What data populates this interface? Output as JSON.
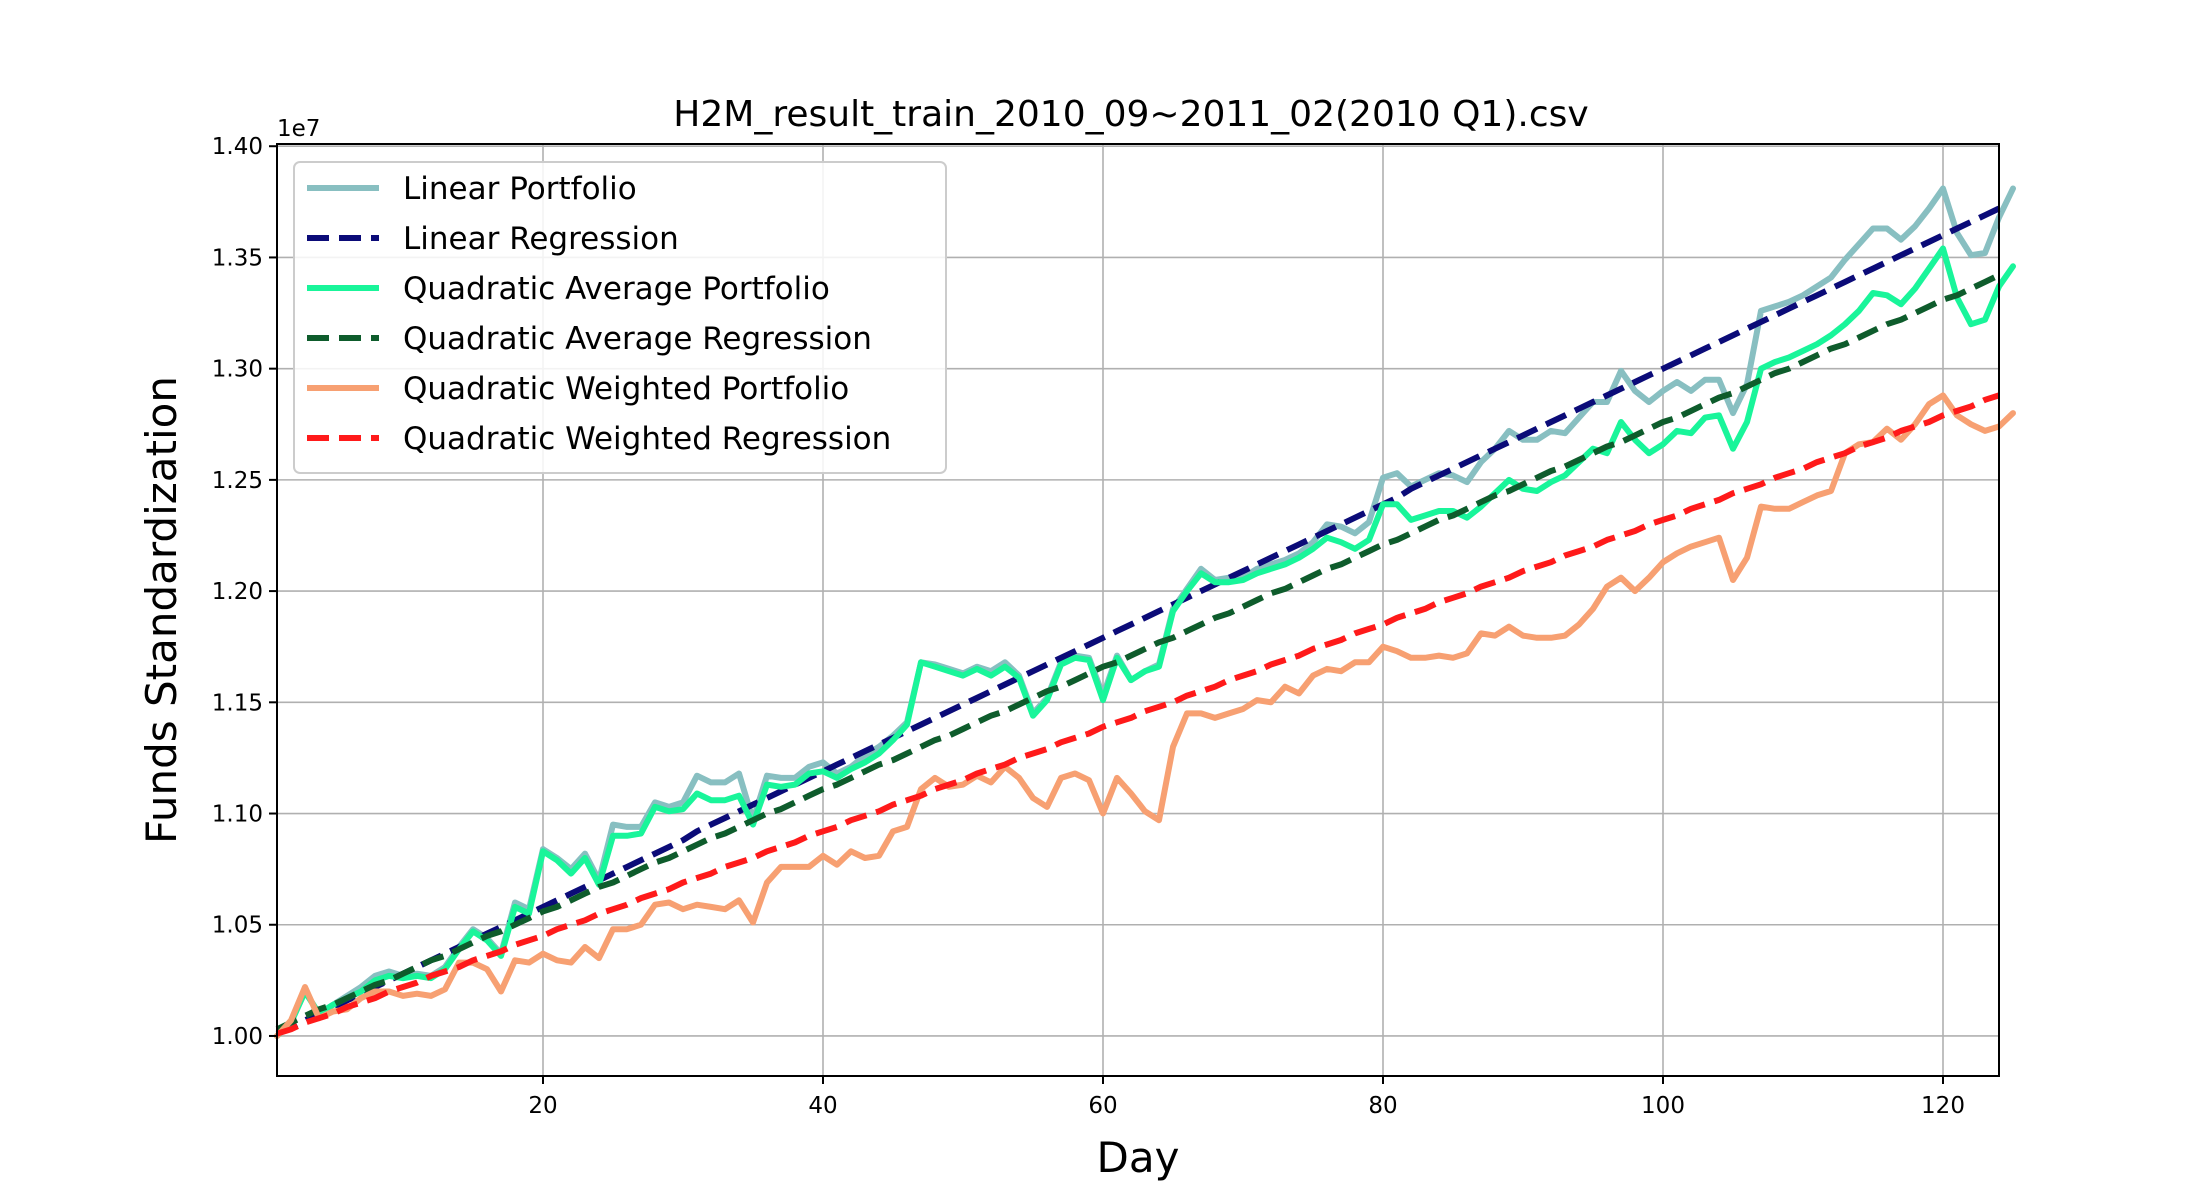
{
  "chart_data": {
    "type": "line",
    "title": "H2M_result_train_2010_09~2011_02(2010 Q1).csv",
    "xlabel": "Day",
    "ylabel": "Funds Standardization",
    "y_offset_label": "1e7",
    "xlim": [
      1,
      124
    ],
    "ylim": [
      0.982,
      1.401
    ],
    "xticks": [
      20,
      40,
      60,
      80,
      100,
      120
    ],
    "yticks": [
      1.0,
      1.05,
      1.1,
      1.15,
      1.2,
      1.25,
      1.3,
      1.35,
      1.4
    ],
    "ytick_labels": [
      "1.00",
      "1.05",
      "1.10",
      "1.15",
      "1.20",
      "1.25",
      "1.30",
      "1.35",
      "1.40"
    ],
    "grid": true,
    "legend_position": "upper-left",
    "series": [
      {
        "name": "Linear Portfolio",
        "color": "#88bfc1",
        "style": "solid",
        "y": [
          1.0,
          1.006,
          1.02,
          1.01,
          1.014,
          1.018,
          1.022,
          1.027,
          1.029,
          1.027,
          1.028,
          1.027,
          1.031,
          1.04,
          1.048,
          1.044,
          1.037,
          1.06,
          1.057,
          1.084,
          1.08,
          1.075,
          1.082,
          1.07,
          1.095,
          1.094,
          1.094,
          1.105,
          1.103,
          1.105,
          1.117,
          1.114,
          1.114,
          1.118,
          1.097,
          1.117,
          1.116,
          1.116,
          1.121,
          1.123,
          1.118,
          1.121,
          1.126,
          1.13,
          1.135,
          1.141,
          1.168,
          1.167,
          1.165,
          1.163,
          1.166,
          1.164,
          1.168,
          1.162,
          1.145,
          1.152,
          1.168,
          1.171,
          1.17,
          1.153,
          1.171,
          1.16,
          1.164,
          1.167,
          1.192,
          1.201,
          1.21,
          1.205,
          1.206,
          1.206,
          1.21,
          1.212,
          1.214,
          1.217,
          1.222,
          1.23,
          1.229,
          1.226,
          1.231,
          1.251,
          1.253,
          1.247,
          1.25,
          1.253,
          1.252,
          1.249,
          1.258,
          1.264,
          1.272,
          1.268,
          1.268,
          1.272,
          1.271,
          1.278,
          1.285,
          1.285,
          1.299,
          1.29,
          1.285,
          1.29,
          1.294,
          1.29,
          1.295,
          1.295,
          1.28,
          1.293,
          1.326,
          1.328,
          1.33,
          1.333,
          1.337,
          1.341,
          1.349,
          1.356,
          1.363,
          1.363,
          1.358,
          1.364,
          1.372,
          1.381,
          1.361,
          1.351,
          1.352,
          1.368,
          1.381
        ]
      },
      {
        "name": "Linear Regression",
        "color": "#0b0b78",
        "style": "dashed",
        "y": [
          1.001,
          1.004,
          1.007,
          1.01,
          1.013,
          1.016,
          1.019,
          1.022,
          1.025,
          1.028,
          1.031,
          1.034,
          1.037,
          1.04,
          1.043,
          1.046,
          1.049,
          1.052,
          1.055,
          1.058,
          1.061,
          1.064,
          1.067,
          1.07,
          1.073,
          1.076,
          1.079,
          1.082,
          1.085,
          1.088,
          1.092,
          1.095,
          1.098,
          1.101,
          1.104,
          1.107,
          1.11,
          1.113,
          1.116,
          1.119,
          1.122,
          1.125,
          1.128,
          1.131,
          1.134,
          1.137,
          1.14,
          1.143,
          1.146,
          1.149,
          1.152,
          1.155,
          1.158,
          1.161,
          1.164,
          1.167,
          1.17,
          1.173,
          1.176,
          1.179,
          1.182,
          1.185,
          1.188,
          1.191,
          1.194,
          1.197,
          1.2,
          1.203,
          1.206,
          1.209,
          1.212,
          1.215,
          1.218,
          1.221,
          1.224,
          1.227,
          1.23,
          1.233,
          1.236,
          1.239,
          1.242,
          1.246,
          1.249,
          1.252,
          1.255,
          1.258,
          1.261,
          1.264,
          1.267,
          1.27,
          1.273,
          1.276,
          1.279,
          1.282,
          1.285,
          1.288,
          1.291,
          1.294,
          1.297,
          1.3,
          1.303,
          1.306,
          1.309,
          1.312,
          1.315,
          1.318,
          1.321,
          1.324,
          1.327,
          1.33,
          1.333,
          1.336,
          1.339,
          1.342,
          1.345,
          1.348,
          1.351,
          1.354,
          1.357,
          1.36,
          1.363,
          1.366,
          1.369,
          1.372
        ]
      },
      {
        "name": "Quadratic Average Portfolio",
        "color": "#19f59a",
        "style": "solid",
        "y": [
          1.0,
          1.006,
          1.02,
          1.01,
          1.014,
          1.017,
          1.02,
          1.025,
          1.027,
          1.026,
          1.027,
          1.026,
          1.03,
          1.039,
          1.047,
          1.043,
          1.036,
          1.058,
          1.055,
          1.083,
          1.079,
          1.073,
          1.08,
          1.068,
          1.09,
          1.09,
          1.091,
          1.103,
          1.101,
          1.102,
          1.109,
          1.106,
          1.106,
          1.108,
          1.095,
          1.113,
          1.112,
          1.113,
          1.118,
          1.119,
          1.116,
          1.12,
          1.123,
          1.127,
          1.133,
          1.14,
          1.168,
          1.166,
          1.164,
          1.162,
          1.165,
          1.162,
          1.166,
          1.161,
          1.144,
          1.151,
          1.167,
          1.17,
          1.169,
          1.151,
          1.17,
          1.16,
          1.164,
          1.166,
          1.191,
          1.2,
          1.208,
          1.204,
          1.204,
          1.205,
          1.208,
          1.21,
          1.212,
          1.215,
          1.219,
          1.224,
          1.222,
          1.219,
          1.223,
          1.239,
          1.239,
          1.232,
          1.234,
          1.236,
          1.236,
          1.233,
          1.238,
          1.244,
          1.25,
          1.246,
          1.245,
          1.249,
          1.252,
          1.258,
          1.264,
          1.262,
          1.276,
          1.268,
          1.262,
          1.266,
          1.272,
          1.271,
          1.278,
          1.279,
          1.264,
          1.276,
          1.3,
          1.303,
          1.305,
          1.308,
          1.311,
          1.315,
          1.32,
          1.326,
          1.334,
          1.333,
          1.329,
          1.336,
          1.345,
          1.354,
          1.332,
          1.32,
          1.322,
          1.337,
          1.346
        ]
      },
      {
        "name": "Quadratic Average Regression",
        "color": "#0e5c2c",
        "style": "dashed",
        "y": [
          1.003,
          1.006,
          1.009,
          1.012,
          1.014,
          1.017,
          1.02,
          1.023,
          1.025,
          1.028,
          1.031,
          1.034,
          1.036,
          1.039,
          1.042,
          1.045,
          1.047,
          1.05,
          1.053,
          1.056,
          1.058,
          1.061,
          1.064,
          1.067,
          1.069,
          1.072,
          1.075,
          1.078,
          1.08,
          1.083,
          1.086,
          1.089,
          1.091,
          1.094,
          1.097,
          1.1,
          1.102,
          1.105,
          1.108,
          1.111,
          1.113,
          1.116,
          1.119,
          1.122,
          1.124,
          1.127,
          1.13,
          1.133,
          1.135,
          1.138,
          1.141,
          1.144,
          1.146,
          1.149,
          1.152,
          1.155,
          1.157,
          1.16,
          1.163,
          1.166,
          1.168,
          1.171,
          1.174,
          1.177,
          1.179,
          1.182,
          1.185,
          1.188,
          1.19,
          1.193,
          1.196,
          1.199,
          1.201,
          1.204,
          1.207,
          1.21,
          1.212,
          1.215,
          1.218,
          1.221,
          1.223,
          1.226,
          1.229,
          1.232,
          1.234,
          1.237,
          1.24,
          1.243,
          1.245,
          1.248,
          1.251,
          1.254,
          1.256,
          1.259,
          1.262,
          1.265,
          1.267,
          1.27,
          1.273,
          1.276,
          1.278,
          1.281,
          1.284,
          1.287,
          1.289,
          1.292,
          1.295,
          1.298,
          1.3,
          1.303,
          1.306,
          1.309,
          1.311,
          1.314,
          1.317,
          1.32,
          1.322,
          1.325,
          1.328,
          1.331,
          1.333,
          1.336,
          1.339,
          1.342
        ]
      },
      {
        "name": "Quadratic Weighted Portfolio",
        "color": "#f7a072",
        "style": "solid",
        "y": [
          1.0,
          1.007,
          1.022,
          1.008,
          1.011,
          1.012,
          1.017,
          1.02,
          1.02,
          1.018,
          1.019,
          1.018,
          1.021,
          1.033,
          1.033,
          1.03,
          1.02,
          1.034,
          1.033,
          1.037,
          1.034,
          1.033,
          1.04,
          1.035,
          1.048,
          1.048,
          1.05,
          1.059,
          1.06,
          1.057,
          1.059,
          1.058,
          1.057,
          1.061,
          1.051,
          1.069,
          1.076,
          1.076,
          1.076,
          1.081,
          1.077,
          1.083,
          1.08,
          1.081,
          1.092,
          1.094,
          1.111,
          1.116,
          1.112,
          1.113,
          1.117,
          1.114,
          1.121,
          1.116,
          1.107,
          1.103,
          1.116,
          1.118,
          1.115,
          1.1,
          1.116,
          1.109,
          1.101,
          1.097,
          1.13,
          1.145,
          1.145,
          1.143,
          1.145,
          1.147,
          1.151,
          1.15,
          1.157,
          1.154,
          1.162,
          1.165,
          1.164,
          1.168,
          1.168,
          1.175,
          1.173,
          1.17,
          1.17,
          1.171,
          1.17,
          1.172,
          1.181,
          1.18,
          1.184,
          1.18,
          1.179,
          1.179,
          1.18,
          1.185,
          1.192,
          1.202,
          1.206,
          1.2,
          1.206,
          1.213,
          1.217,
          1.22,
          1.222,
          1.224,
          1.205,
          1.215,
          1.238,
          1.237,
          1.237,
          1.24,
          1.243,
          1.245,
          1.262,
          1.266,
          1.267,
          1.273,
          1.268,
          1.275,
          1.284,
          1.288,
          1.279,
          1.275,
          1.272,
          1.274,
          1.28
        ]
      },
      {
        "name": "Quadratic Weighted Regression",
        "color": "#ff1a1a",
        "style": "dashed",
        "y": [
          1.001,
          1.003,
          1.006,
          1.008,
          1.01,
          1.013,
          1.015,
          1.017,
          1.02,
          1.022,
          1.024,
          1.027,
          1.029,
          1.031,
          1.034,
          1.036,
          1.038,
          1.041,
          1.043,
          1.045,
          1.048,
          1.05,
          1.052,
          1.055,
          1.057,
          1.059,
          1.062,
          1.064,
          1.066,
          1.069,
          1.071,
          1.073,
          1.076,
          1.078,
          1.08,
          1.083,
          1.085,
          1.087,
          1.09,
          1.092,
          1.094,
          1.097,
          1.099,
          1.101,
          1.104,
          1.106,
          1.108,
          1.111,
          1.113,
          1.115,
          1.118,
          1.12,
          1.122,
          1.125,
          1.127,
          1.129,
          1.132,
          1.134,
          1.136,
          1.139,
          1.141,
          1.143,
          1.146,
          1.148,
          1.15,
          1.153,
          1.155,
          1.157,
          1.16,
          1.162,
          1.164,
          1.167,
          1.169,
          1.171,
          1.174,
          1.176,
          1.178,
          1.181,
          1.183,
          1.185,
          1.188,
          1.19,
          1.192,
          1.195,
          1.197,
          1.199,
          1.202,
          1.204,
          1.206,
          1.209,
          1.211,
          1.213,
          1.216,
          1.218,
          1.22,
          1.223,
          1.225,
          1.227,
          1.23,
          1.232,
          1.234,
          1.237,
          1.239,
          1.241,
          1.244,
          1.246,
          1.248,
          1.251,
          1.253,
          1.255,
          1.258,
          1.26,
          1.262,
          1.265,
          1.267,
          1.269,
          1.272,
          1.274,
          1.276,
          1.279,
          1.281,
          1.283,
          1.286,
          1.288
        ]
      }
    ]
  }
}
